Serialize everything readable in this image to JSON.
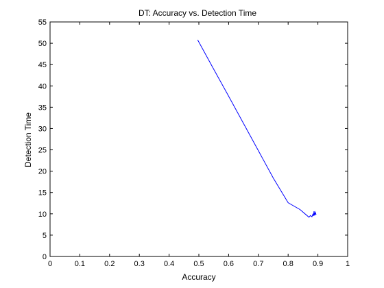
{
  "chart_data": {
    "type": "line",
    "title": "DT: Accuracy vs. Detection Time",
    "xlabel": "Accuracy",
    "ylabel": "Detection Time",
    "xlim": [
      0,
      1
    ],
    "ylim": [
      0,
      55
    ],
    "xticks": [
      0,
      0.1,
      0.2,
      0.3,
      0.4,
      0.5,
      0.6,
      0.7,
      0.8,
      0.9,
      1
    ],
    "xtick_labels": [
      "0",
      "0.1",
      "0.2",
      "0.3",
      "0.4",
      "0.5",
      "0.6",
      "0.7",
      "0.8",
      "0.9",
      "1"
    ],
    "yticks": [
      0,
      5,
      10,
      15,
      20,
      25,
      30,
      35,
      40,
      45,
      50,
      55
    ],
    "ytick_labels": [
      "0",
      "5",
      "10",
      "15",
      "20",
      "25",
      "30",
      "35",
      "40",
      "45",
      "50",
      "55"
    ],
    "grid": false,
    "line_color": "#0000ff",
    "series": [
      {
        "x": [
          0.496,
          0.55,
          0.6,
          0.65,
          0.7,
          0.75,
          0.8,
          0.84,
          0.86,
          0.87,
          0.875,
          0.88,
          0.883,
          0.885,
          0.887,
          0.889,
          0.891,
          0.894,
          0.89,
          0.886
        ],
        "y": [
          50.8,
          43.9,
          37.6,
          31.2,
          24.8,
          18.4,
          12.6,
          11.0,
          9.8,
          9.2,
          9.6,
          9.3,
          9.9,
          9.5,
          10.6,
          9.6,
          10.4,
          9.8,
          10.1,
          9.7
        ]
      }
    ]
  }
}
